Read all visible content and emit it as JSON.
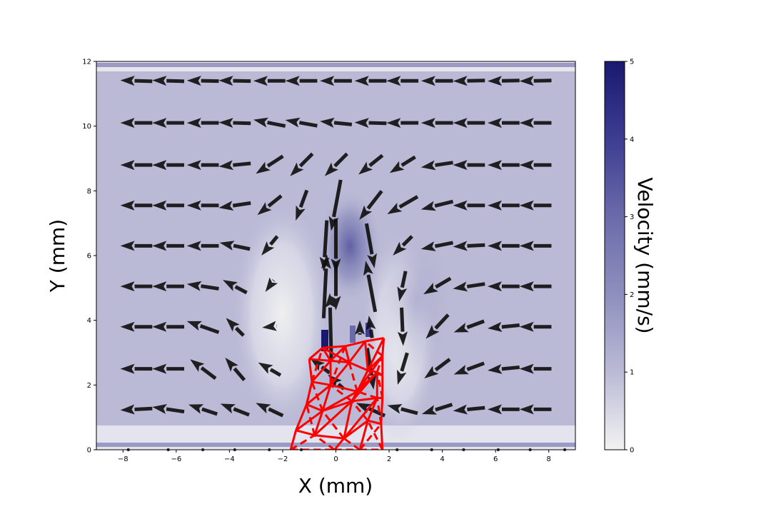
{
  "chart_data": {
    "type": "vector-field",
    "xlabel": "X (mm)",
    "ylabel": "Y (mm)",
    "xlim": [
      -9,
      9
    ],
    "ylim": [
      0,
      12
    ],
    "xticks": [
      -8,
      -6,
      -4,
      -2,
      0,
      2,
      4,
      6,
      8
    ],
    "xtick_labels": [
      "−8",
      "−6",
      "−4",
      "−2",
      "0",
      "2",
      "4",
      "6",
      "8"
    ],
    "yticks": [
      0,
      2,
      4,
      6,
      8,
      10,
      12
    ],
    "colorbar": {
      "label": "Velocity (mm/s)",
      "range": [
        0,
        5
      ],
      "ticks": [
        0,
        1,
        2,
        3,
        4,
        5
      ],
      "colors": [
        "#f2f2f2",
        "#babad6",
        "#8f8fbe",
        "#6b6bab",
        "#3d3d92",
        "#191970"
      ]
    },
    "background_speed": 1.3,
    "quiver": {
      "rows_y": [
        1.25,
        2.5,
        3.8,
        5.05,
        6.3,
        7.55,
        8.8,
        10.1,
        11.4
      ],
      "vectors": [
        {
          "x": -7.5,
          "y": 11.4,
          "u": -1.0,
          "v": 0.03
        },
        {
          "x": -6.3,
          "y": 11.4,
          "u": -1.0,
          "v": 0.03
        },
        {
          "x": -5.0,
          "y": 11.4,
          "u": -1.0,
          "v": 0.02
        },
        {
          "x": -3.8,
          "y": 11.4,
          "u": -1.0,
          "v": 0.02
        },
        {
          "x": -2.5,
          "y": 11.4,
          "u": -1.0,
          "v": 0.0
        },
        {
          "x": -1.3,
          "y": 11.4,
          "u": -1.0,
          "v": 0.0
        },
        {
          "x": 0.0,
          "y": 11.4,
          "u": -1.0,
          "v": 0.0
        },
        {
          "x": 1.3,
          "y": 11.4,
          "u": -1.0,
          "v": 0.0
        },
        {
          "x": 2.5,
          "y": 11.4,
          "u": -1.0,
          "v": 0.0
        },
        {
          "x": 3.8,
          "y": 11.4,
          "u": -1.0,
          "v": 0.0
        },
        {
          "x": 5.0,
          "y": 11.4,
          "u": -1.0,
          "v": -0.02
        },
        {
          "x": 6.3,
          "y": 11.4,
          "u": -1.0,
          "v": -0.02
        },
        {
          "x": 7.5,
          "y": 11.4,
          "u": -1.0,
          "v": -0.02
        },
        {
          "x": -7.5,
          "y": 10.1,
          "u": -1.0,
          "v": 0.0
        },
        {
          "x": -6.3,
          "y": 10.1,
          "u": -1.0,
          "v": 0.0
        },
        {
          "x": -5.0,
          "y": 10.1,
          "u": -1.0,
          "v": 0.0
        },
        {
          "x": -3.8,
          "y": 10.1,
          "u": -1.0,
          "v": 0.03
        },
        {
          "x": -2.5,
          "y": 10.1,
          "u": -1.0,
          "v": 0.2
        },
        {
          "x": -1.3,
          "y": 10.1,
          "u": -1.0,
          "v": 0.18
        },
        {
          "x": 0.0,
          "y": 10.1,
          "u": -1.0,
          "v": 0.1
        },
        {
          "x": 1.3,
          "y": 10.1,
          "u": -1.0,
          "v": 0.03
        },
        {
          "x": 2.5,
          "y": 10.1,
          "u": -1.0,
          "v": 0.0
        },
        {
          "x": 3.8,
          "y": 10.1,
          "u": -1.0,
          "v": 0.0
        },
        {
          "x": 5.0,
          "y": 10.1,
          "u": -1.0,
          "v": 0.0
        },
        {
          "x": 6.3,
          "y": 10.1,
          "u": -1.0,
          "v": 0.0
        },
        {
          "x": 7.5,
          "y": 10.1,
          "u": -1.0,
          "v": 0.0
        },
        {
          "x": -7.5,
          "y": 8.8,
          "u": -1.0,
          "v": 0.0
        },
        {
          "x": -6.3,
          "y": 8.8,
          "u": -1.0,
          "v": 0.0
        },
        {
          "x": -5.0,
          "y": 8.8,
          "u": -1.0,
          "v": 0.0
        },
        {
          "x": -3.8,
          "y": 8.8,
          "u": -1.0,
          "v": -0.1
        },
        {
          "x": -2.5,
          "y": 8.8,
          "u": -0.85,
          "v": -0.55
        },
        {
          "x": -1.3,
          "y": 8.8,
          "u": -0.7,
          "v": -0.7
        },
        {
          "x": 0.0,
          "y": 8.8,
          "u": -0.7,
          "v": -0.7
        },
        {
          "x": 1.3,
          "y": 8.8,
          "u": -0.75,
          "v": -0.6
        },
        {
          "x": 2.5,
          "y": 8.8,
          "u": -0.8,
          "v": -0.5
        },
        {
          "x": 3.8,
          "y": 8.8,
          "u": -1.0,
          "v": -0.15
        },
        {
          "x": 5.0,
          "y": 8.8,
          "u": -1.0,
          "v": 0.0
        },
        {
          "x": 6.3,
          "y": 8.8,
          "u": -1.0,
          "v": 0.0
        },
        {
          "x": 7.5,
          "y": 8.8,
          "u": -1.0,
          "v": 0.0
        },
        {
          "x": -7.5,
          "y": 7.55,
          "u": -1.0,
          "v": 0.0
        },
        {
          "x": -6.3,
          "y": 7.55,
          "u": -1.0,
          "v": 0.0
        },
        {
          "x": -5.0,
          "y": 7.55,
          "u": -1.0,
          "v": 0.0
        },
        {
          "x": -3.8,
          "y": 7.55,
          "u": -1.0,
          "v": -0.15
        },
        {
          "x": -2.5,
          "y": 7.55,
          "u": -0.75,
          "v": -0.6
        },
        {
          "x": -1.3,
          "y": 7.55,
          "u": -0.35,
          "v": -0.95
        },
        {
          "x": 0.0,
          "y": 7.55,
          "u": -0.3,
          "v": -1.6
        },
        {
          "x": 1.3,
          "y": 7.55,
          "u": -0.7,
          "v": -0.9
        },
        {
          "x": 2.5,
          "y": 7.55,
          "u": -0.95,
          "v": -0.55
        },
        {
          "x": 3.8,
          "y": 7.55,
          "u": -1.0,
          "v": -0.25
        },
        {
          "x": 5.0,
          "y": 7.55,
          "u": -1.0,
          "v": 0.0
        },
        {
          "x": 6.3,
          "y": 7.55,
          "u": -1.0,
          "v": 0.0
        },
        {
          "x": 7.5,
          "y": 7.55,
          "u": -1.0,
          "v": 0.0
        },
        {
          "x": -7.5,
          "y": 6.3,
          "u": -1.0,
          "v": 0.0
        },
        {
          "x": -6.3,
          "y": 6.3,
          "u": -1.0,
          "v": 0.0
        },
        {
          "x": -5.0,
          "y": 6.3,
          "u": -1.0,
          "v": 0.0
        },
        {
          "x": -3.8,
          "y": 6.3,
          "u": -0.95,
          "v": 0.2
        },
        {
          "x": -2.5,
          "y": 6.3,
          "u": -0.5,
          "v": -0.6
        },
        {
          "x": -0.4,
          "y": 6.3,
          "u": -0.1,
          "v": -1.6
        },
        {
          "x": 0.0,
          "y": 6.3,
          "u": 0.0,
          "v": -1.7
        },
        {
          "x": 1.3,
          "y": 6.3,
          "u": 0.25,
          "v": -1.4
        },
        {
          "x": 2.5,
          "y": 6.3,
          "u": -0.6,
          "v": -0.6
        },
        {
          "x": 3.8,
          "y": 6.3,
          "u": -1.0,
          "v": -0.2
        },
        {
          "x": 5.0,
          "y": 6.3,
          "u": -1.0,
          "v": -0.05
        },
        {
          "x": 6.3,
          "y": 6.3,
          "u": -1.0,
          "v": 0.0
        },
        {
          "x": 7.5,
          "y": 6.3,
          "u": -1.0,
          "v": 0.0
        },
        {
          "x": -7.5,
          "y": 5.05,
          "u": -1.0,
          "v": 0.0
        },
        {
          "x": -6.3,
          "y": 5.05,
          "u": -1.0,
          "v": 0.0
        },
        {
          "x": -5.0,
          "y": 5.05,
          "u": -1.0,
          "v": 0.15
        },
        {
          "x": -3.8,
          "y": 5.05,
          "u": -0.75,
          "v": 0.4
        },
        {
          "x": -2.5,
          "y": 5.05,
          "u": -0.25,
          "v": -0.35
        },
        {
          "x": -0.4,
          "y": 5.05,
          "u": 0.1,
          "v": 2.0
        },
        {
          "x": 0.0,
          "y": 5.05,
          "u": 0.0,
          "v": -1.5
        },
        {
          "x": 1.3,
          "y": 5.05,
          "u": -0.3,
          "v": 1.6
        },
        {
          "x": 2.5,
          "y": 5.05,
          "u": -0.2,
          "v": -0.95
        },
        {
          "x": 3.8,
          "y": 5.05,
          "u": -0.85,
          "v": -0.5
        },
        {
          "x": 5.0,
          "y": 5.05,
          "u": -1.0,
          "v": -0.15
        },
        {
          "x": 6.3,
          "y": 5.05,
          "u": -1.0,
          "v": 0.0
        },
        {
          "x": 7.5,
          "y": 5.05,
          "u": -1.0,
          "v": 0.0
        },
        {
          "x": -7.5,
          "y": 3.8,
          "u": -1.0,
          "v": 0.0
        },
        {
          "x": -6.3,
          "y": 3.8,
          "u": -1.0,
          "v": 0.0
        },
        {
          "x": -5.0,
          "y": 3.8,
          "u": -1.0,
          "v": 0.35
        },
        {
          "x": -3.8,
          "y": 3.8,
          "u": -0.55,
          "v": 0.55
        },
        {
          "x": -2.5,
          "y": 3.8,
          "u": -0.45,
          "v": -0.05
        },
        {
          "x": -0.2,
          "y": 3.8,
          "u": -0.05,
          "v": 2.1
        },
        {
          "x": 0.9,
          "y": 3.8,
          "u": 0.0,
          "v": 0.4
        },
        {
          "x": 1.3,
          "y": 3.8,
          "u": -0.1,
          "v": 0.7
        },
        {
          "x": 2.5,
          "y": 3.8,
          "u": 0.05,
          "v": -1.2
        },
        {
          "x": 3.8,
          "y": 3.8,
          "u": -0.7,
          "v": -0.75
        },
        {
          "x": 5.0,
          "y": 3.8,
          "u": -0.95,
          "v": -0.35
        },
        {
          "x": 6.3,
          "y": 3.8,
          "u": -1.0,
          "v": -0.1
        },
        {
          "x": 7.5,
          "y": 3.8,
          "u": -1.0,
          "v": 0.0
        },
        {
          "x": -7.5,
          "y": 2.5,
          "u": -1.0,
          "v": 0.0
        },
        {
          "x": -6.3,
          "y": 2.5,
          "u": -1.0,
          "v": 0.0
        },
        {
          "x": -5.0,
          "y": 2.5,
          "u": -0.8,
          "v": 0.6
        },
        {
          "x": -3.8,
          "y": 2.5,
          "u": -0.6,
          "v": 0.7
        },
        {
          "x": -2.5,
          "y": 2.5,
          "u": -0.7,
          "v": 0.4
        },
        {
          "x": 1.3,
          "y": 2.5,
          "u": 0.2,
          "v": -1.3
        },
        {
          "x": 2.5,
          "y": 2.5,
          "u": -0.3,
          "v": -1.0
        },
        {
          "x": 3.8,
          "y": 2.5,
          "u": -0.8,
          "v": -0.6
        },
        {
          "x": 5.0,
          "y": 2.5,
          "u": -0.95,
          "v": -0.35
        },
        {
          "x": 6.3,
          "y": 2.5,
          "u": -1.0,
          "v": -0.1
        },
        {
          "x": 7.5,
          "y": 2.5,
          "u": -1.0,
          "v": 0.0
        },
        {
          "x": -7.5,
          "y": 1.25,
          "u": -1.0,
          "v": -0.05
        },
        {
          "x": -6.3,
          "y": 1.25,
          "u": -1.0,
          "v": 0.15
        },
        {
          "x": -5.0,
          "y": 1.25,
          "u": -0.9,
          "v": 0.3
        },
        {
          "x": -3.8,
          "y": 1.25,
          "u": -0.9,
          "v": 0.35
        },
        {
          "x": -2.5,
          "y": 1.25,
          "u": -0.85,
          "v": 0.4
        },
        {
          "x": -0.6,
          "y": 2.6,
          "u": -0.6,
          "v": 0.45
        },
        {
          "x": 0.0,
          "y": 2.1,
          "u": -0.5,
          "v": 0.45
        },
        {
          "x": 1.3,
          "y": 1.25,
          "u": -0.9,
          "v": 0.4
        },
        {
          "x": 2.5,
          "y": 1.25,
          "u": -0.95,
          "v": 0.25
        },
        {
          "x": 3.8,
          "y": 1.25,
          "u": -0.95,
          "v": -0.3
        },
        {
          "x": 5.0,
          "y": 1.25,
          "u": -1.0,
          "v": -0.1
        },
        {
          "x": 6.3,
          "y": 1.25,
          "u": -1.0,
          "v": 0.0
        },
        {
          "x": 7.5,
          "y": 1.25,
          "u": -1.0,
          "v": 0.0
        }
      ],
      "arrow_length_per_unit": 1.2
    },
    "structure": {
      "color": "#ff0000",
      "nodes": [
        [
          -1.7,
          0.0
        ],
        [
          -0.05,
          0.0
        ],
        [
          0.9,
          0.0
        ],
        [
          1.75,
          0.0
        ],
        [
          -1.5,
          0.6
        ],
        [
          -0.8,
          0.45
        ],
        [
          0.3,
          0.35
        ],
        [
          1.2,
          0.9
        ],
        [
          1.7,
          0.8
        ],
        [
          -1.1,
          1.4
        ],
        [
          -0.5,
          1.2
        ],
        [
          0.6,
          1.5
        ],
        [
          1.55,
          1.6
        ],
        [
          1.75,
          1.6
        ],
        [
          -0.9,
          2.1
        ],
        [
          -0.2,
          2.0
        ],
        [
          0.8,
          1.8
        ],
        [
          1.55,
          2.4
        ],
        [
          1.75,
          2.3
        ],
        [
          -0.2,
          2.75
        ],
        [
          0.5,
          2.7
        ],
        [
          1.2,
          2.45
        ],
        [
          1.75,
          2.9
        ],
        [
          -1.0,
          2.8
        ],
        [
          -0.5,
          3.15
        ],
        [
          0.35,
          3.2
        ],
        [
          1.1,
          3.35
        ],
        [
          1.8,
          3.45
        ]
      ],
      "solid_edges": [
        [
          0,
          4
        ],
        [
          4,
          9
        ],
        [
          9,
          14
        ],
        [
          14,
          23
        ],
        [
          23,
          24
        ],
        [
          24,
          25
        ],
        [
          25,
          26
        ],
        [
          26,
          27
        ],
        [
          1,
          6
        ],
        [
          6,
          11
        ],
        [
          11,
          16
        ],
        [
          16,
          21
        ],
        [
          21,
          26
        ],
        [
          3,
          8
        ],
        [
          8,
          13
        ],
        [
          13,
          18
        ],
        [
          18,
          22
        ],
        [
          22,
          27
        ],
        [
          4,
          5
        ],
        [
          5,
          6
        ],
        [
          6,
          7
        ],
        [
          7,
          8
        ],
        [
          9,
          10
        ],
        [
          10,
          11
        ],
        [
          11,
          12
        ],
        [
          12,
          13
        ],
        [
          14,
          15
        ],
        [
          15,
          16
        ],
        [
          16,
          17
        ],
        [
          17,
          18
        ],
        [
          19,
          20
        ],
        [
          20,
          21
        ],
        [
          21,
          22
        ],
        [
          5,
          10
        ],
        [
          10,
          15
        ],
        [
          15,
          19
        ],
        [
          19,
          24
        ],
        [
          7,
          12
        ],
        [
          12,
          17
        ],
        [
          17,
          21
        ],
        [
          4,
          10
        ],
        [
          9,
          15
        ],
        [
          14,
          19
        ],
        [
          5,
          11
        ],
        [
          10,
          16
        ],
        [
          15,
          20
        ],
        [
          20,
          25
        ],
        [
          6,
          12
        ],
        [
          11,
          17
        ],
        [
          16,
          22
        ],
        [
          21,
          27
        ],
        [
          2,
          7
        ],
        [
          19,
          25
        ],
        [
          23,
          19
        ],
        [
          24,
          20
        ],
        [
          20,
          26
        ]
      ],
      "dashed_edges": [
        [
          0,
          1
        ],
        [
          1,
          2
        ],
        [
          2,
          3
        ],
        [
          0,
          5
        ],
        [
          1,
          5
        ],
        [
          2,
          6
        ],
        [
          2,
          8
        ],
        [
          3,
          7
        ],
        [
          5,
          9
        ],
        [
          6,
          10
        ],
        [
          7,
          11
        ],
        [
          8,
          12
        ],
        [
          9,
          14
        ],
        [
          10,
          14
        ],
        [
          11,
          15
        ],
        [
          12,
          16
        ],
        [
          13,
          17
        ],
        [
          14,
          24
        ],
        [
          15,
          25
        ],
        [
          16,
          20
        ],
        [
          17,
          22
        ],
        [
          18,
          21
        ],
        [
          22,
          26
        ],
        [
          13,
          12
        ]
      ]
    },
    "bottom_markers_x": [
      -7.8,
      -6.3,
      -5.0,
      -3.8,
      -2.5,
      -1.3,
      2.3,
      3.6,
      4.8,
      6.1,
      7.3,
      8.6
    ]
  }
}
